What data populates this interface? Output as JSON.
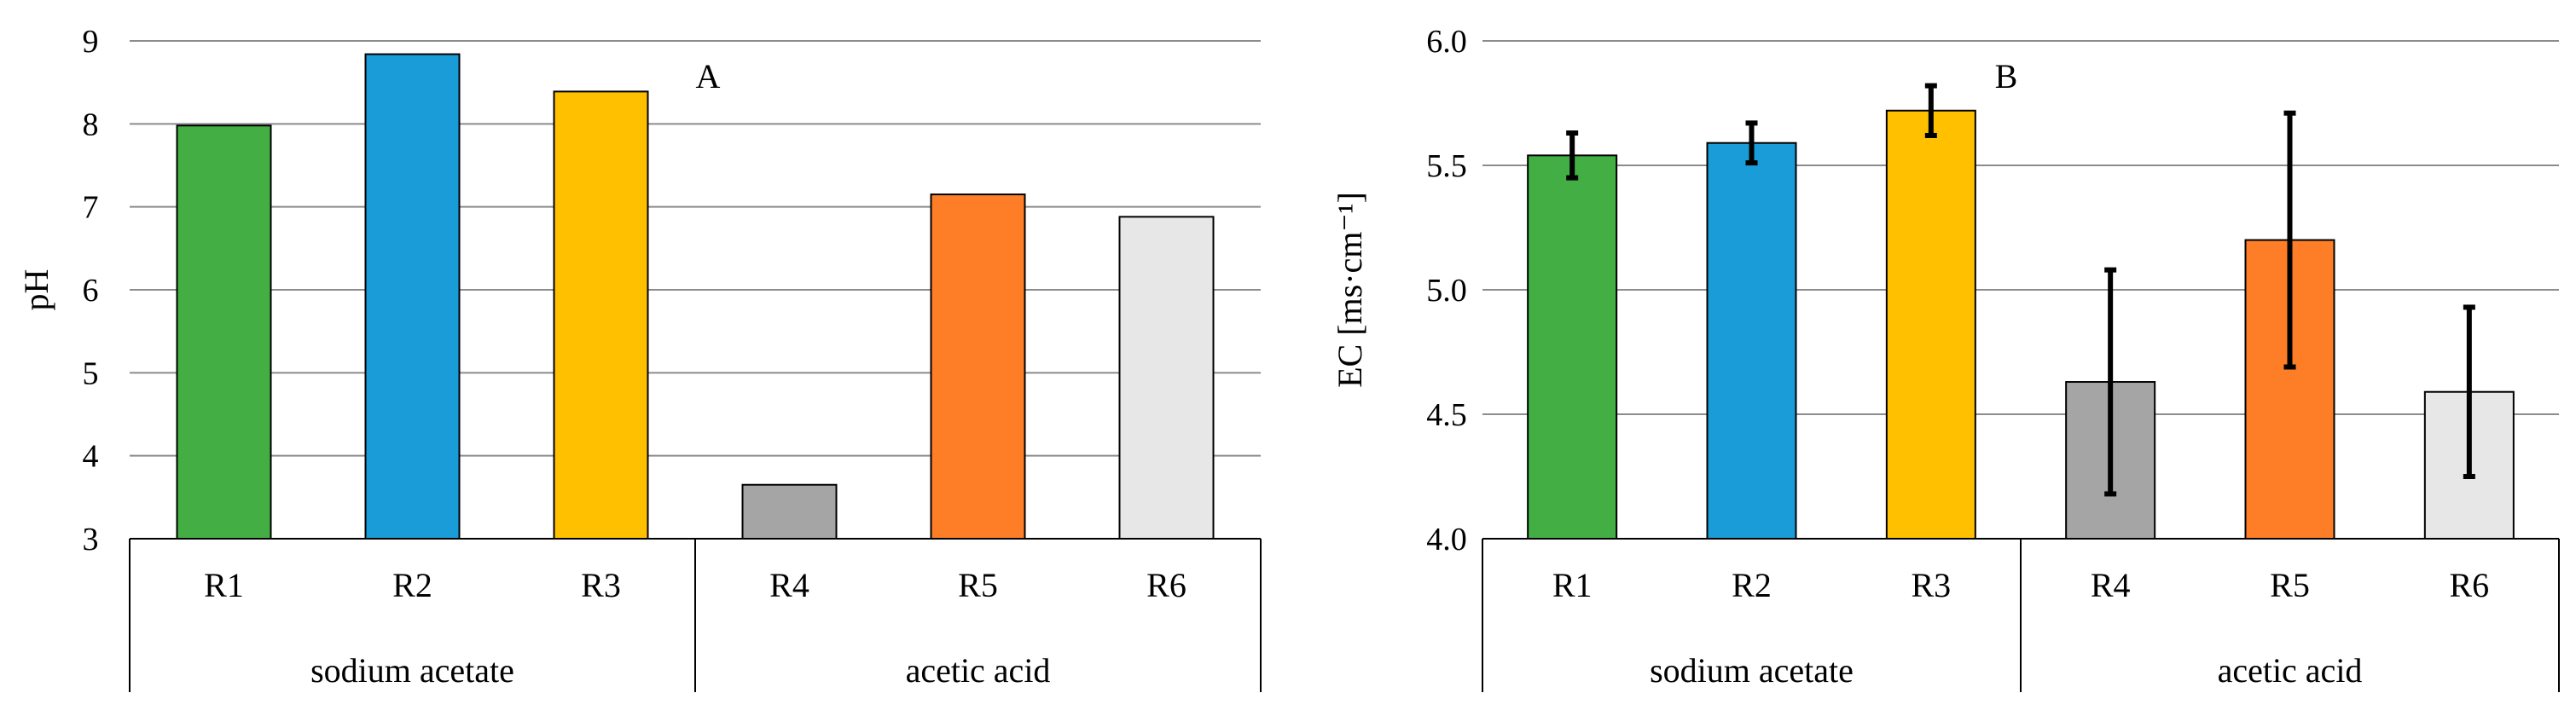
{
  "colors": {
    "gridline": "#8c8c8c",
    "axis": "#000000",
    "bar_outline": "#000000",
    "error_bar": "#000000",
    "series": [
      "#43ae44",
      "#199cd8",
      "#ffc000",
      "#a5a5a5",
      "#fd7e27",
      "#e7e7e7"
    ]
  },
  "chart_data": [
    {
      "type": "bar",
      "panel_label": "A",
      "ylabel": "pH",
      "xlabel": "",
      "ylim": [
        3,
        9
      ],
      "yticks": [
        3,
        4,
        5,
        6,
        7,
        8,
        9
      ],
      "ytick_labels": [
        "3",
        "4",
        "5",
        "6",
        "7",
        "8",
        "9"
      ],
      "grid": true,
      "categories": [
        "R1",
        "R2",
        "R3",
        "R4",
        "R5",
        "R6"
      ],
      "values": [
        7.98,
        8.84,
        8.39,
        3.65,
        7.15,
        6.88
      ],
      "errors": null,
      "groups": [
        {
          "label": "sodium acetate",
          "categories": [
            "R1",
            "R2",
            "R3"
          ]
        },
        {
          "label": "acetic acid",
          "categories": [
            "R4",
            "R5",
            "R6"
          ]
        }
      ]
    },
    {
      "type": "bar",
      "panel_label": "B",
      "ylabel": "EC [ms·cm⁻¹]",
      "xlabel": "",
      "ylim": [
        4.0,
        6.0
      ],
      "yticks": [
        4.0,
        4.5,
        5.0,
        5.5,
        6.0
      ],
      "ytick_labels": [
        "4.0",
        "4.5",
        "5.0",
        "5.5",
        "6.0"
      ],
      "grid": true,
      "categories": [
        "R1",
        "R2",
        "R3",
        "R4",
        "R5",
        "R6"
      ],
      "values": [
        5.54,
        5.59,
        5.72,
        4.63,
        5.2,
        4.59
      ],
      "errors": [
        0.09,
        0.08,
        0.1,
        0.45,
        0.51,
        0.34
      ],
      "groups": [
        {
          "label": "sodium acetate",
          "categories": [
            "R1",
            "R2",
            "R3"
          ]
        },
        {
          "label": "acetic acid",
          "categories": [
            "R4",
            "R5",
            "R6"
          ]
        }
      ]
    }
  ]
}
